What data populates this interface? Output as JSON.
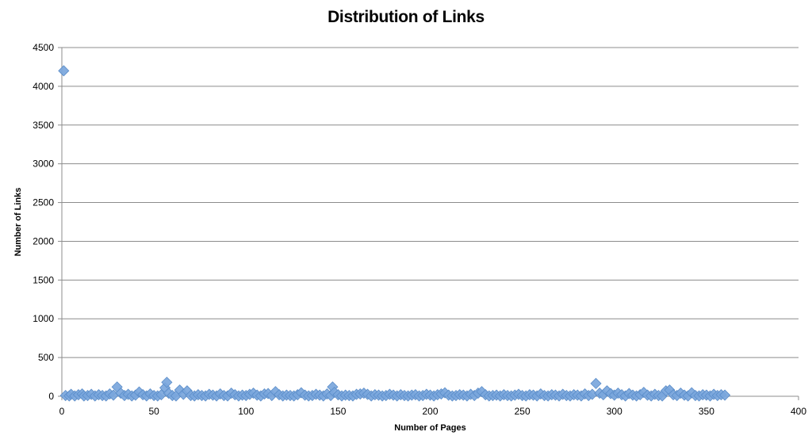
{
  "chart_data": {
    "type": "scatter",
    "title": "Distribution of Links",
    "xlabel": "Number of Pages",
    "ylabel": "Number of Links",
    "xlim": [
      0,
      400
    ],
    "ylim": [
      0,
      4500
    ],
    "x_ticks": [
      0,
      50,
      100,
      150,
      200,
      250,
      300,
      350,
      400
    ],
    "y_ticks": [
      0,
      500,
      1000,
      1500,
      2000,
      2500,
      3000,
      3500,
      4000,
      4500
    ],
    "grid": "horizontal",
    "legend": "none",
    "marker": "diamond",
    "color": "#7aa6dc",
    "series": [
      {
        "points": [
          [
            1,
            4200
          ],
          [
            2,
            10
          ],
          [
            4,
            5
          ],
          [
            5,
            25
          ],
          [
            7,
            5
          ],
          [
            9,
            20
          ],
          [
            11,
            30
          ],
          [
            12,
            5
          ],
          [
            14,
            10
          ],
          [
            16,
            25
          ],
          [
            18,
            5
          ],
          [
            20,
            20
          ],
          [
            22,
            10
          ],
          [
            24,
            5
          ],
          [
            26,
            30
          ],
          [
            28,
            15
          ],
          [
            30,
            120
          ],
          [
            32,
            40
          ],
          [
            34,
            10
          ],
          [
            36,
            25
          ],
          [
            38,
            5
          ],
          [
            40,
            15
          ],
          [
            42,
            55
          ],
          [
            44,
            20
          ],
          [
            46,
            5
          ],
          [
            48,
            30
          ],
          [
            50,
            10
          ],
          [
            52,
            5
          ],
          [
            54,
            20
          ],
          [
            56,
            110
          ],
          [
            57,
            180
          ],
          [
            58,
            40
          ],
          [
            60,
            10
          ],
          [
            62,
            5
          ],
          [
            64,
            80
          ],
          [
            66,
            25
          ],
          [
            68,
            70
          ],
          [
            70,
            10
          ],
          [
            72,
            5
          ],
          [
            74,
            20
          ],
          [
            76,
            10
          ],
          [
            78,
            5
          ],
          [
            80,
            25
          ],
          [
            82,
            15
          ],
          [
            84,
            5
          ],
          [
            86,
            30
          ],
          [
            88,
            10
          ],
          [
            90,
            5
          ],
          [
            92,
            40
          ],
          [
            94,
            20
          ],
          [
            96,
            5
          ],
          [
            98,
            15
          ],
          [
            100,
            10
          ],
          [
            102,
            25
          ],
          [
            104,
            40
          ],
          [
            106,
            15
          ],
          [
            108,
            5
          ],
          [
            110,
            30
          ],
          [
            112,
            35
          ],
          [
            114,
            10
          ],
          [
            116,
            60
          ],
          [
            118,
            20
          ],
          [
            120,
            5
          ],
          [
            122,
            15
          ],
          [
            124,
            10
          ],
          [
            126,
            5
          ],
          [
            128,
            20
          ],
          [
            130,
            45
          ],
          [
            132,
            15
          ],
          [
            134,
            5
          ],
          [
            136,
            10
          ],
          [
            138,
            25
          ],
          [
            140,
            15
          ],
          [
            142,
            5
          ],
          [
            144,
            30
          ],
          [
            146,
            10
          ],
          [
            147,
            120
          ],
          [
            148,
            50
          ],
          [
            150,
            20
          ],
          [
            152,
            5
          ],
          [
            154,
            15
          ],
          [
            156,
            10
          ],
          [
            158,
            5
          ],
          [
            160,
            25
          ],
          [
            162,
            30
          ],
          [
            164,
            40
          ],
          [
            166,
            25
          ],
          [
            168,
            5
          ],
          [
            170,
            20
          ],
          [
            172,
            15
          ],
          [
            174,
            5
          ],
          [
            176,
            10
          ],
          [
            178,
            25
          ],
          [
            180,
            15
          ],
          [
            182,
            5
          ],
          [
            184,
            20
          ],
          [
            186,
            10
          ],
          [
            188,
            5
          ],
          [
            190,
            15
          ],
          [
            192,
            20
          ],
          [
            194,
            5
          ],
          [
            196,
            10
          ],
          [
            198,
            25
          ],
          [
            200,
            15
          ],
          [
            202,
            5
          ],
          [
            204,
            20
          ],
          [
            206,
            30
          ],
          [
            208,
            45
          ],
          [
            210,
            15
          ],
          [
            212,
            5
          ],
          [
            214,
            10
          ],
          [
            216,
            20
          ],
          [
            218,
            15
          ],
          [
            220,
            5
          ],
          [
            222,
            25
          ],
          [
            224,
            10
          ],
          [
            226,
            40
          ],
          [
            228,
            60
          ],
          [
            230,
            20
          ],
          [
            232,
            5
          ],
          [
            234,
            10
          ],
          [
            236,
            15
          ],
          [
            238,
            5
          ],
          [
            240,
            20
          ],
          [
            242,
            10
          ],
          [
            244,
            5
          ],
          [
            246,
            15
          ],
          [
            248,
            25
          ],
          [
            250,
            10
          ],
          [
            252,
            5
          ],
          [
            254,
            20
          ],
          [
            256,
            15
          ],
          [
            258,
            5
          ],
          [
            260,
            30
          ],
          [
            262,
            10
          ],
          [
            264,
            5
          ],
          [
            266,
            20
          ],
          [
            268,
            15
          ],
          [
            270,
            5
          ],
          [
            272,
            25
          ],
          [
            274,
            10
          ],
          [
            276,
            5
          ],
          [
            278,
            20
          ],
          [
            280,
            15
          ],
          [
            282,
            5
          ],
          [
            284,
            30
          ],
          [
            286,
            10
          ],
          [
            288,
            25
          ],
          [
            290,
            165
          ],
          [
            292,
            40
          ],
          [
            294,
            20
          ],
          [
            296,
            70
          ],
          [
            298,
            35
          ],
          [
            300,
            15
          ],
          [
            302,
            40
          ],
          [
            304,
            20
          ],
          [
            306,
            5
          ],
          [
            308,
            35
          ],
          [
            310,
            15
          ],
          [
            312,
            5
          ],
          [
            314,
            20
          ],
          [
            316,
            50
          ],
          [
            318,
            15
          ],
          [
            320,
            5
          ],
          [
            322,
            25
          ],
          [
            324,
            10
          ],
          [
            326,
            5
          ],
          [
            328,
            70
          ],
          [
            330,
            80
          ],
          [
            332,
            20
          ],
          [
            334,
            10
          ],
          [
            336,
            40
          ],
          [
            338,
            15
          ],
          [
            340,
            5
          ],
          [
            342,
            45
          ],
          [
            344,
            10
          ],
          [
            346,
            5
          ],
          [
            348,
            20
          ],
          [
            350,
            15
          ],
          [
            352,
            5
          ],
          [
            354,
            25
          ],
          [
            356,
            10
          ],
          [
            358,
            20
          ],
          [
            360,
            15
          ]
        ]
      }
    ]
  }
}
